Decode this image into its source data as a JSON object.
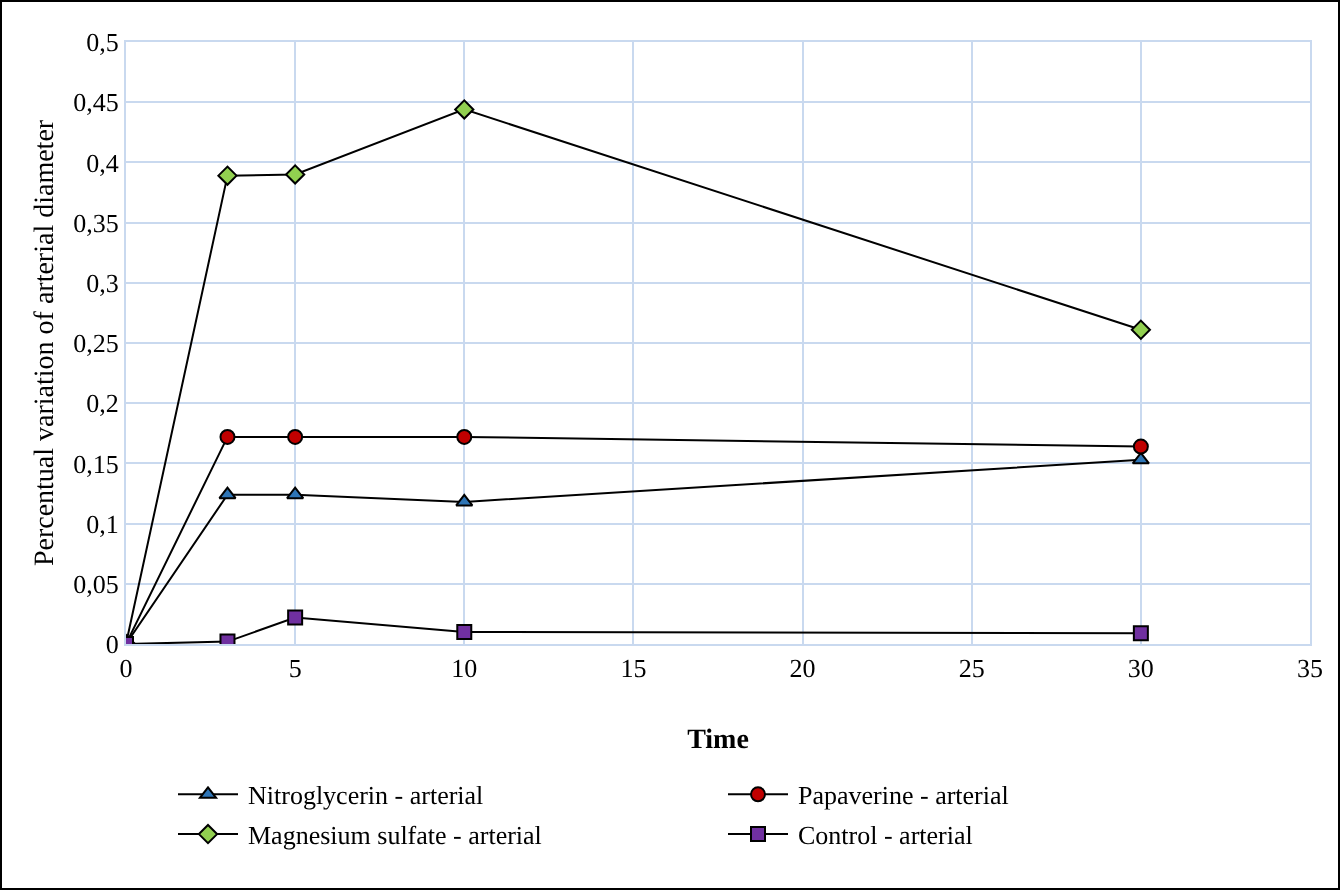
{
  "chart_data": {
    "type": "line",
    "xlabel": "Time",
    "ylabel": "Percentual variation of arterial diameter",
    "x": [
      0,
      3,
      5,
      10,
      30
    ],
    "series": [
      {
        "name": "Nitroglycerin - arterial",
        "color": "#2e75b6",
        "marker": "triangle",
        "values": [
          0,
          0.124,
          0.124,
          0.118,
          0.153
        ]
      },
      {
        "name": "Papaverine - arterial",
        "color": "#c00000",
        "marker": "circle",
        "values": [
          0,
          0.172,
          0.172,
          0.172,
          0.164
        ]
      },
      {
        "name": "Magnesium sulfate - arterial",
        "color": "#92d050",
        "marker": "diamond",
        "values": [
          0,
          0.389,
          0.39,
          0.444,
          0.261
        ]
      },
      {
        "name": "Control - arterial",
        "color": "#7030a0",
        "marker": "square",
        "values": [
          0,
          0.002,
          0.022,
          0.01,
          0.009
        ]
      }
    ],
    "xlim": [
      0,
      35
    ],
    "xticks": [
      0,
      5,
      10,
      15,
      20,
      25,
      30,
      35
    ],
    "ylim": [
      0,
      0.5
    ],
    "yticks": [
      0,
      {
        "value": 0.05,
        "label": "0,05"
      },
      {
        "value": 0.1,
        "label": "0,1"
      },
      {
        "value": 0.15,
        "label": "0,15"
      },
      {
        "value": 0.2,
        "label": "0,2"
      },
      {
        "value": 0.25,
        "label": "0,25"
      },
      {
        "value": 0.3,
        "label": "0,3"
      },
      {
        "value": 0.35,
        "label": "0,35"
      },
      {
        "value": 0.4,
        "label": "0,4"
      },
      {
        "value": 0.45,
        "label": "0,45"
      },
      {
        "value": 0.5,
        "label": "0,5"
      }
    ],
    "grid": true,
    "legend": "bottom",
    "line_style": "solid"
  }
}
